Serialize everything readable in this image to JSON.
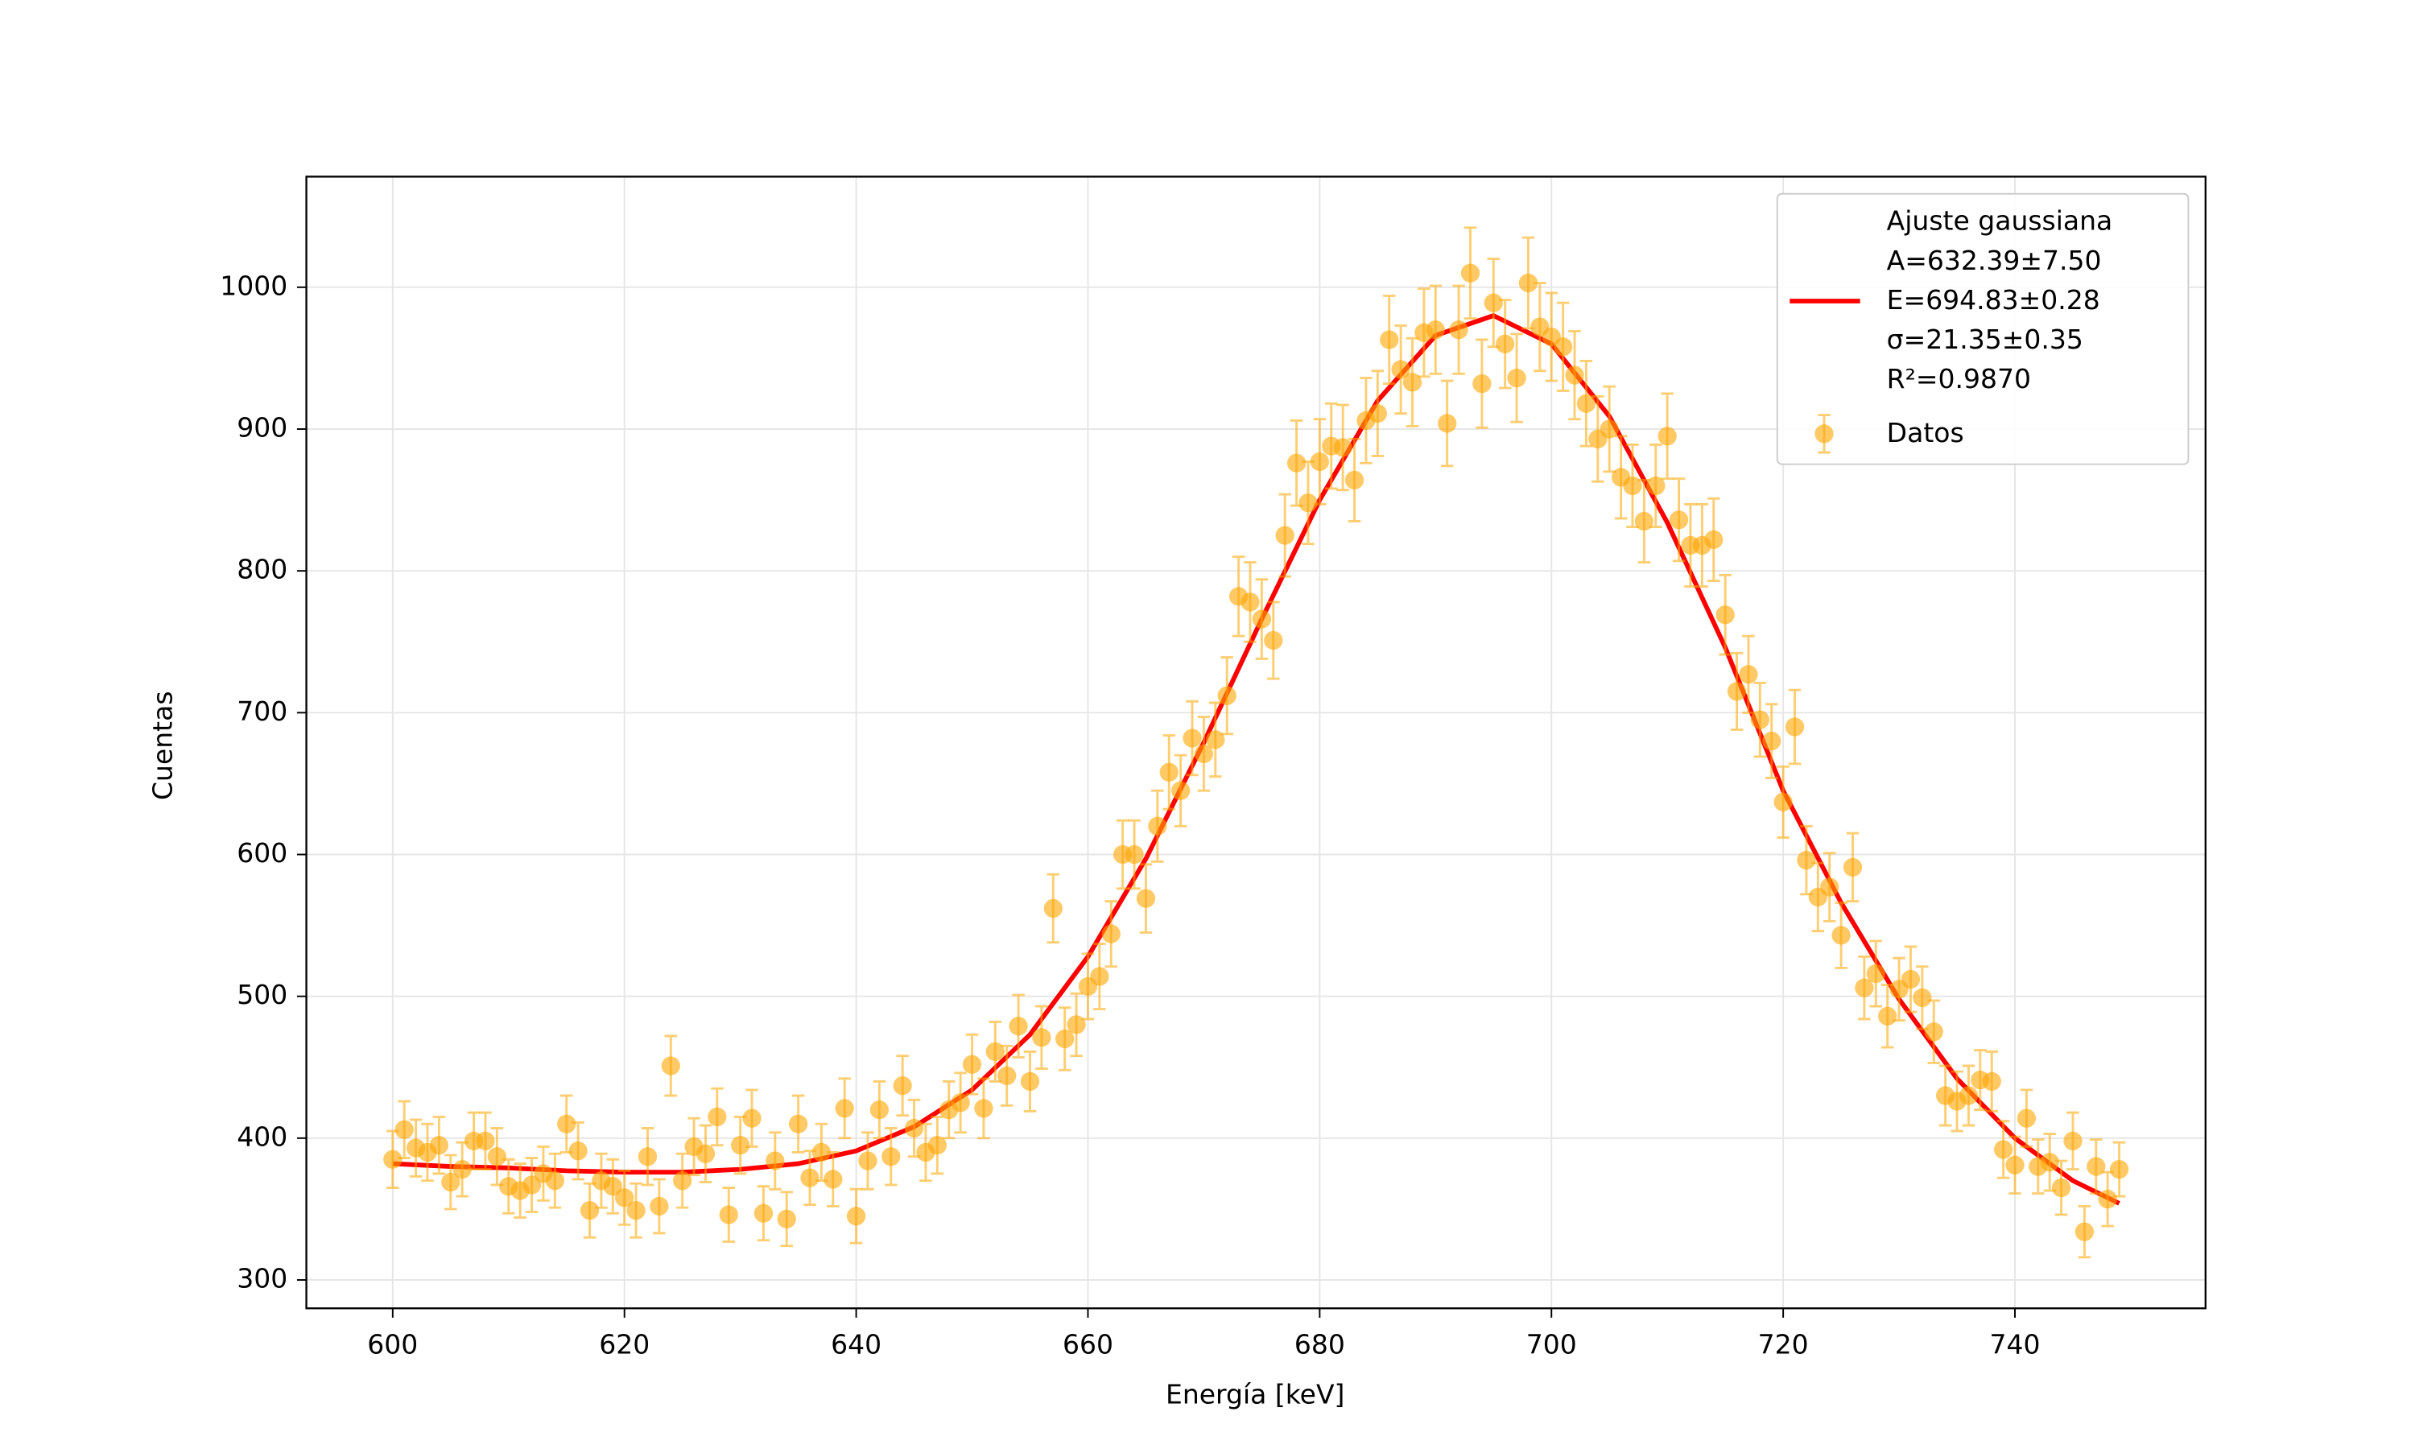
{
  "chart_data": {
    "type": "scatter",
    "xlabel": "Energía [keV]",
    "ylabel": "Cuentas",
    "xlim": [
      592.55,
      756.45
    ],
    "xticks": [
      600,
      620,
      640,
      660,
      680,
      700,
      720,
      740
    ],
    "ylim": [
      280,
      1078
    ],
    "yticks": [
      300,
      400,
      500,
      600,
      700,
      800,
      900,
      1000
    ],
    "grid": true,
    "legend": "upper right",
    "series": [
      {
        "name": "Ajuste gaussiana\nA=632.39±7.50\nE=694.83±0.28\nσ=21.35±0.35\nR²=0.9870",
        "style": "line",
        "color": "#ff0000",
        "x": [
          600,
          605,
          610,
          615,
          620,
          625,
          630,
          635,
          640,
          645,
          650,
          655,
          660,
          665,
          670,
          675,
          680,
          685,
          690,
          695,
          700,
          705,
          710,
          715,
          720,
          725,
          730,
          735,
          740,
          745,
          749
        ],
        "values": [
          382,
          380,
          379,
          377,
          376,
          376,
          378,
          382,
          391,
          408,
          434,
          473,
          528,
          597,
          679,
          766,
          850,
          920,
          966,
          980,
          960,
          909,
          834,
          746,
          645,
          566,
          498,
          442,
          400,
          370,
          354
        ]
      },
      {
        "name": "Datos",
        "style": "errorbar",
        "color": "#ffa500",
        "x": [
          600,
          601,
          602,
          603,
          604,
          605,
          606,
          607,
          608,
          609,
          610,
          611,
          612,
          613,
          614,
          615,
          616,
          617,
          618,
          619,
          620,
          621,
          622,
          623,
          624,
          625,
          626,
          627,
          628,
          629,
          630,
          631,
          632,
          633,
          634,
          635,
          636,
          637,
          638,
          639,
          640,
          641,
          642,
          643,
          644,
          645,
          646,
          647,
          648,
          649,
          650,
          651,
          652,
          653,
          654,
          655,
          656,
          657,
          658,
          659,
          660,
          661,
          662,
          663,
          664,
          665,
          666,
          667,
          668,
          669,
          670,
          671,
          672,
          673,
          674,
          675,
          676,
          677,
          678,
          679,
          680,
          681,
          682,
          683,
          684,
          685,
          686,
          687,
          688,
          689,
          690,
          691,
          692,
          693,
          694,
          695,
          696,
          697,
          698,
          699,
          700,
          701,
          702,
          703,
          704,
          705,
          706,
          707,
          708,
          709,
          710,
          711,
          712,
          713,
          714,
          715,
          716,
          717,
          718,
          719,
          720,
          721,
          722,
          723,
          724,
          725,
          726,
          727,
          728,
          729,
          730,
          731,
          732,
          733,
          734,
          735,
          736,
          737,
          738,
          739,
          740,
          741,
          742,
          743,
          744,
          745,
          746,
          747,
          748,
          749
        ],
        "values": [
          385,
          406,
          393,
          390,
          395,
          369,
          378,
          398,
          398,
          387,
          366,
          363,
          367,
          375,
          370,
          410,
          391,
          349,
          370,
          366,
          358,
          349,
          387,
          352,
          451,
          370,
          394,
          389,
          415,
          346,
          395,
          414,
          347,
          384,
          343,
          410,
          372,
          390,
          371,
          421,
          345,
          384,
          420,
          387,
          437,
          407,
          390,
          395,
          420,
          425,
          452,
          421,
          461,
          444,
          479,
          440,
          471,
          562,
          470,
          480,
          507,
          514,
          544,
          600,
          600,
          569,
          620,
          658,
          645,
          682,
          671,
          681,
          712,
          782,
          778,
          766,
          751,
          825,
          876,
          848,
          877,
          888,
          887,
          864,
          906,
          911,
          963,
          942,
          933,
          968,
          970,
          904,
          970,
          1010,
          932,
          989,
          960,
          936,
          1003,
          972,
          965,
          958,
          938,
          918,
          893,
          900,
          866,
          860,
          835,
          860,
          895,
          836,
          818,
          818,
          822,
          769,
          715,
          727,
          695,
          680,
          637,
          690,
          596,
          570,
          577,
          543,
          591,
          506,
          516,
          486,
          505,
          512,
          499,
          475,
          430,
          426,
          430,
          441,
          440,
          392,
          381,
          414,
          380,
          383,
          365,
          398,
          334,
          380,
          357,
          378
        ],
        "errors": [
          20,
          20,
          20,
          20,
          20,
          19,
          19,
          20,
          20,
          20,
          19,
          19,
          19,
          19,
          19,
          20,
          20,
          19,
          19,
          19,
          19,
          19,
          20,
          19,
          21,
          19,
          20,
          20,
          20,
          19,
          20,
          20,
          19,
          20,
          19,
          20,
          19,
          20,
          19,
          21,
          19,
          20,
          20,
          20,
          21,
          20,
          20,
          20,
          20,
          21,
          21,
          21,
          21,
          21,
          22,
          21,
          22,
          24,
          22,
          22,
          23,
          23,
          23,
          24,
          24,
          24,
          25,
          26,
          25,
          26,
          26,
          26,
          27,
          28,
          28,
          28,
          27,
          29,
          30,
          29,
          30,
          30,
          30,
          29,
          30,
          30,
          31,
          31,
          31,
          31,
          31,
          30,
          31,
          32,
          31,
          31,
          31,
          31,
          32,
          31,
          31,
          31,
          31,
          30,
          30,
          30,
          29,
          29,
          29,
          29,
          30,
          29,
          29,
          29,
          29,
          28,
          27,
          27,
          26,
          26,
          25,
          26,
          24,
          24,
          24,
          23,
          24,
          22,
          23,
          22,
          22,
          23,
          22,
          22,
          21,
          21,
          21,
          21,
          21,
          20,
          20,
          20,
          19,
          20,
          19,
          20,
          18,
          19,
          19,
          19
        ]
      }
    ]
  }
}
